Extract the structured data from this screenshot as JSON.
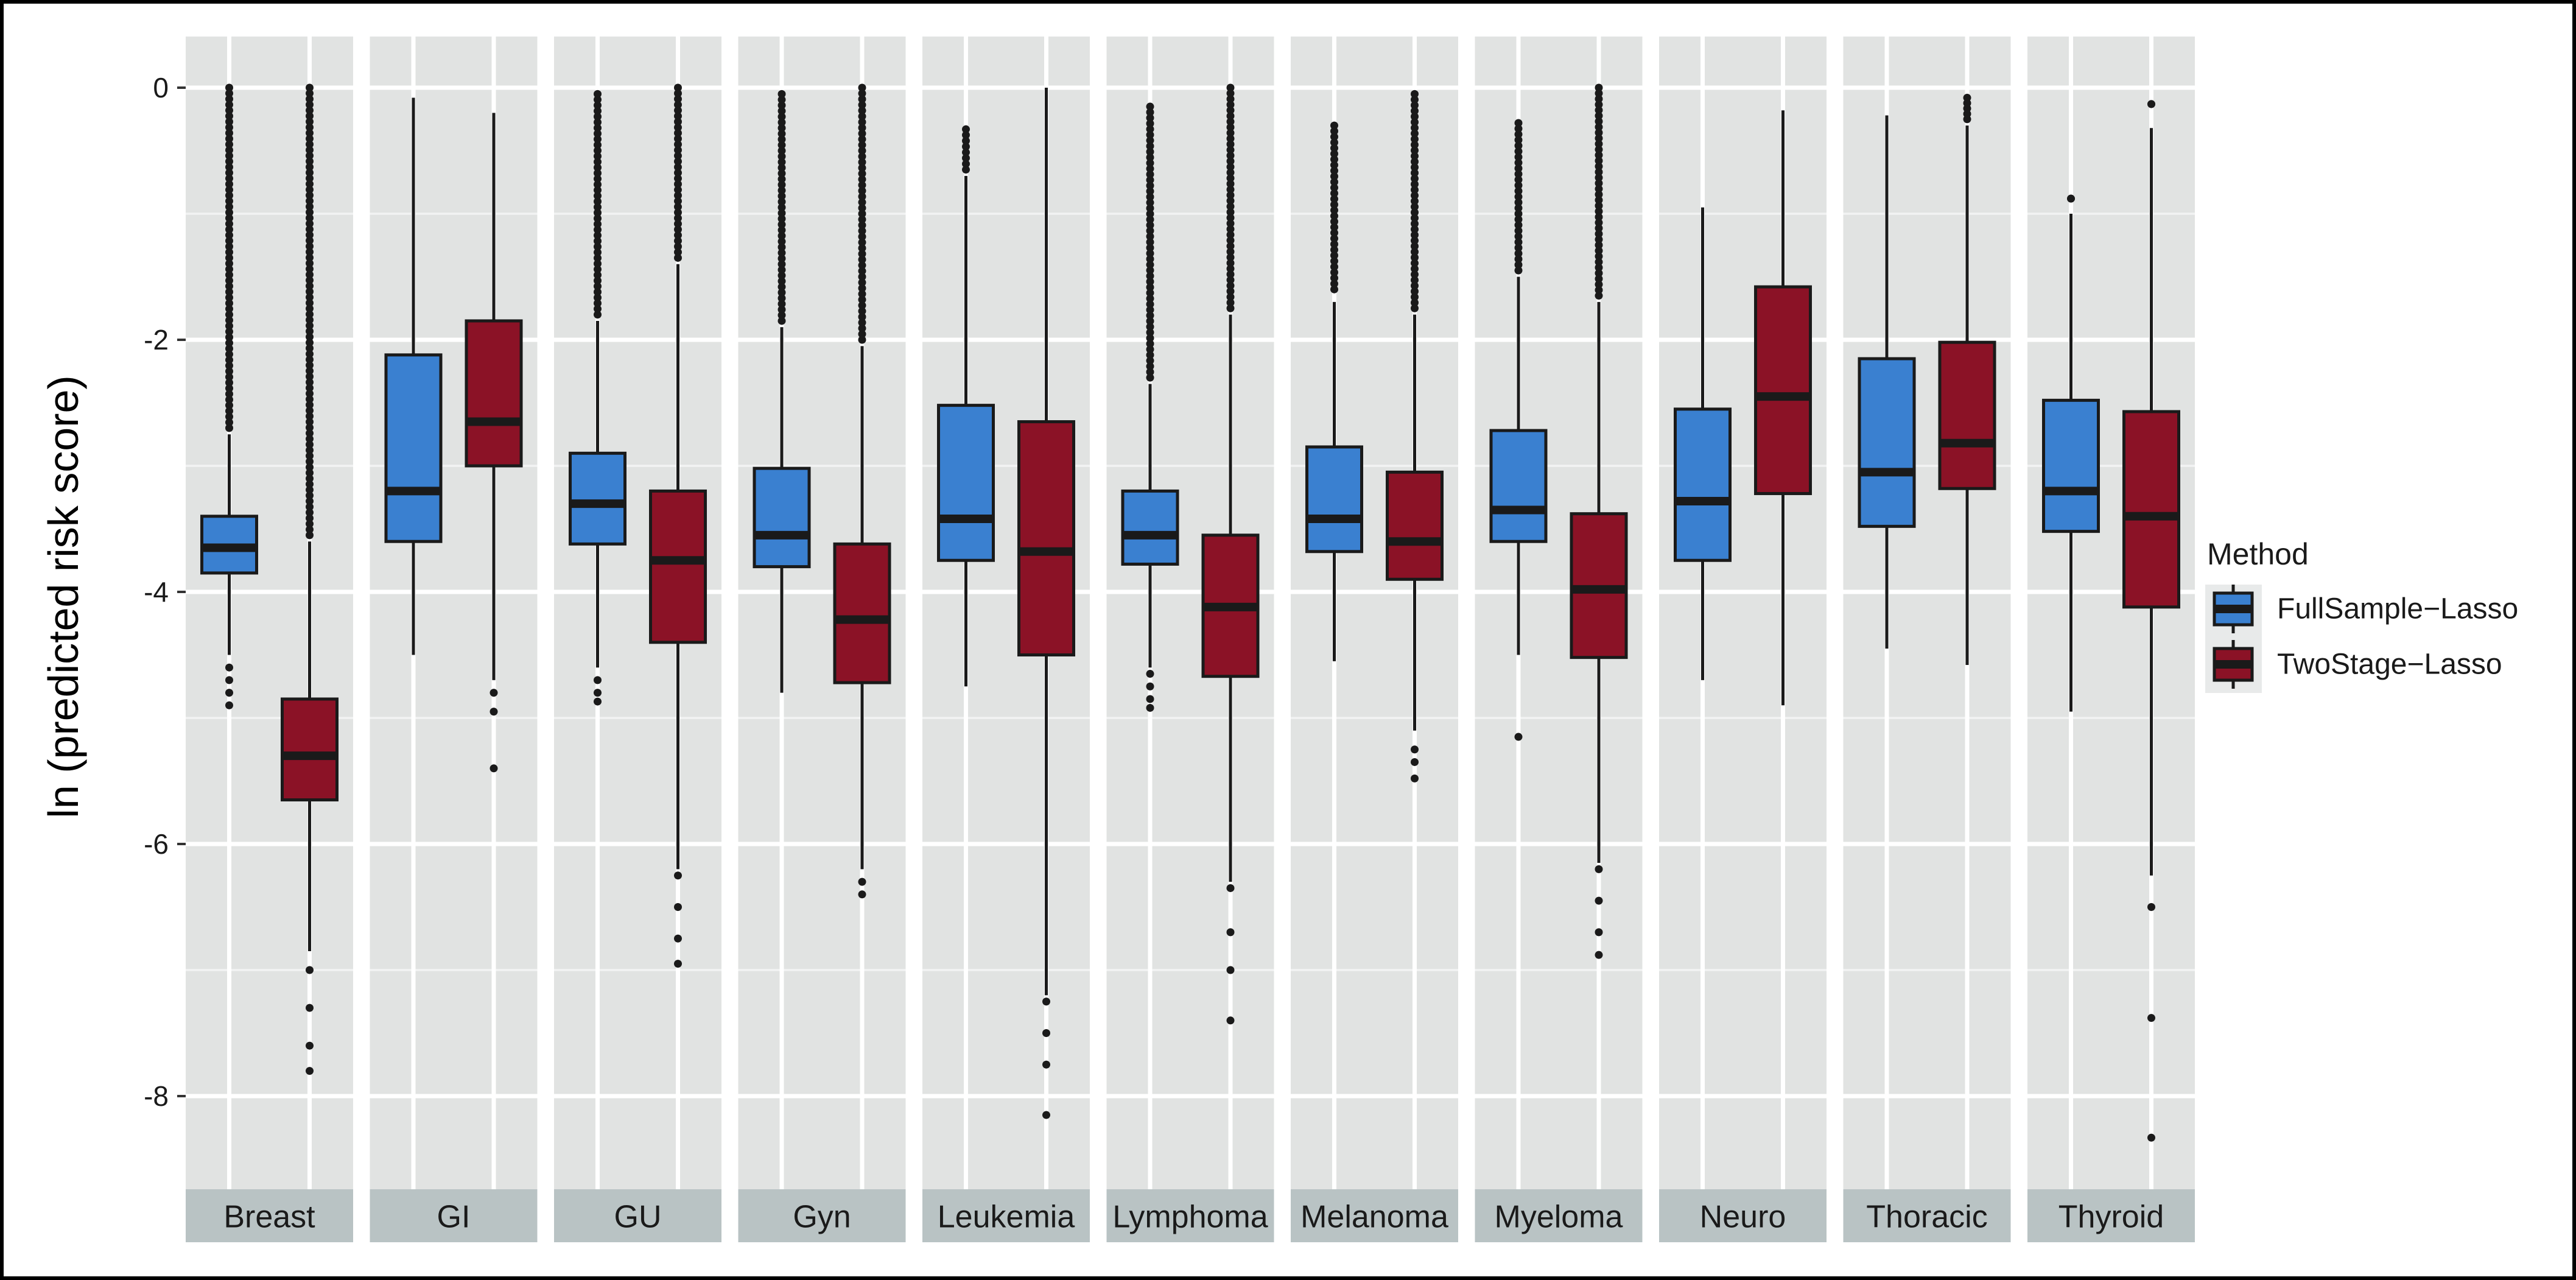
{
  "chart_data": {
    "type": "boxplot",
    "ylabel": "ln (predicted risk score)",
    "ylim": [
      -8.75,
      0.35
    ],
    "yticks": [
      0,
      -2,
      -4,
      -6,
      -8
    ],
    "ytick_labels": [
      "0",
      "-2",
      "-4",
      "-6",
      "-8"
    ],
    "grid": true,
    "facet_strip_position": "bottom",
    "legend": {
      "title": "Method",
      "position": "right",
      "entries": [
        {
          "name": "FullSample−Lasso",
          "color": "#3a80d0"
        },
        {
          "name": "TwoStage−Lasso",
          "color": "#8b1226"
        }
      ]
    },
    "panels": [
      {
        "label": "Breast",
        "boxes": [
          {
            "method": "FullSample−Lasso",
            "whisker_low": -4.5,
            "q1": -3.85,
            "median": -3.65,
            "q3": -3.4,
            "whisker_high": -2.75,
            "outliers_low": [
              -4.6,
              -4.7,
              -4.8,
              -4.9
            ],
            "outliers_high_from": -2.7,
            "outliers_high_to": 0.0
          },
          {
            "method": "TwoStage−Lasso",
            "whisker_low": -6.85,
            "q1": -5.65,
            "median": -5.3,
            "q3": -4.85,
            "whisker_high": -3.6,
            "outliers_low": [
              -7.0,
              -7.3,
              -7.6,
              -7.8
            ],
            "outliers_high_from": -3.55,
            "outliers_high_to": 0.0
          }
        ]
      },
      {
        "label": "GI",
        "boxes": [
          {
            "method": "FullSample−Lasso",
            "whisker_low": -4.5,
            "q1": -3.6,
            "median": -3.2,
            "q3": -2.12,
            "whisker_high": -0.08,
            "outliers_low": [],
            "outliers_high_from": null,
            "outliers_high_to": null
          },
          {
            "method": "TwoStage−Lasso",
            "whisker_low": -4.7,
            "q1": -3.0,
            "median": -2.65,
            "q3": -1.85,
            "whisker_high": -0.2,
            "outliers_low": [
              -4.8,
              -4.95,
              -5.4
            ],
            "outliers_high_from": null,
            "outliers_high_to": null
          }
        ]
      },
      {
        "label": "GU",
        "boxes": [
          {
            "method": "FullSample−Lasso",
            "whisker_low": -4.6,
            "q1": -3.62,
            "median": -3.3,
            "q3": -2.9,
            "whisker_high": -1.85,
            "outliers_low": [
              -4.7,
              -4.8,
              -4.87
            ],
            "outliers_high_from": -1.8,
            "outliers_high_to": -0.05
          },
          {
            "method": "TwoStage−Lasso",
            "whisker_low": -6.2,
            "q1": -4.4,
            "median": -3.75,
            "q3": -3.2,
            "whisker_high": -1.4,
            "outliers_low": [
              -6.25,
              -6.5,
              -6.75,
              -6.95
            ],
            "outliers_high_from": -1.35,
            "outliers_high_to": 0.0
          }
        ]
      },
      {
        "label": "Gyn",
        "boxes": [
          {
            "method": "FullSample−Lasso",
            "whisker_low": -4.8,
            "q1": -3.8,
            "median": -3.55,
            "q3": -3.02,
            "whisker_high": -1.9,
            "outliers_low": [],
            "outliers_high_from": -1.85,
            "outliers_high_to": -0.05
          },
          {
            "method": "TwoStage−Lasso",
            "whisker_low": -6.2,
            "q1": -4.72,
            "median": -4.22,
            "q3": -3.62,
            "whisker_high": -2.05,
            "outliers_low": [
              -6.3,
              -6.4
            ],
            "outliers_high_from": -2.0,
            "outliers_high_to": 0.0
          }
        ]
      },
      {
        "label": "Leukemia",
        "boxes": [
          {
            "method": "FullSample−Lasso",
            "whisker_low": -4.75,
            "q1": -3.75,
            "median": -3.42,
            "q3": -2.52,
            "whisker_high": -0.7,
            "outliers_low": [],
            "outliers_high_from": -0.65,
            "outliers_high_to": -0.33
          },
          {
            "method": "TwoStage−Lasso",
            "whisker_low": -7.2,
            "q1": -4.5,
            "median": -3.68,
            "q3": -2.65,
            "whisker_high": 0.0,
            "outliers_low": [
              -7.25,
              -7.5,
              -7.75,
              -8.15
            ],
            "outliers_high_from": null,
            "outliers_high_to": null
          }
        ]
      },
      {
        "label": "Lymphoma",
        "boxes": [
          {
            "method": "FullSample−Lasso",
            "whisker_low": -4.6,
            "q1": -3.78,
            "median": -3.55,
            "q3": -3.2,
            "whisker_high": -2.35,
            "outliers_low": [
              -4.65,
              -4.75,
              -4.85,
              -4.92
            ],
            "outliers_high_from": -2.3,
            "outliers_high_to": -0.15
          },
          {
            "method": "TwoStage−Lasso",
            "whisker_low": -6.3,
            "q1": -4.67,
            "median": -4.12,
            "q3": -3.55,
            "whisker_high": -1.8,
            "outliers_low": [
              -6.35,
              -6.7,
              -7.0,
              -7.4
            ],
            "outliers_high_from": -1.75,
            "outliers_high_to": 0.0
          }
        ]
      },
      {
        "label": "Melanoma",
        "boxes": [
          {
            "method": "FullSample−Lasso",
            "whisker_low": -4.55,
            "q1": -3.68,
            "median": -3.42,
            "q3": -2.85,
            "whisker_high": -1.7,
            "outliers_low": [],
            "outliers_high_from": -1.6,
            "outliers_high_to": -0.3
          },
          {
            "method": "TwoStage−Lasso",
            "whisker_low": -5.1,
            "q1": -3.9,
            "median": -3.6,
            "q3": -3.05,
            "whisker_high": -1.8,
            "outliers_low": [
              -5.25,
              -5.35,
              -5.48
            ],
            "outliers_high_from": -1.75,
            "outliers_high_to": -0.05
          }
        ]
      },
      {
        "label": "Myeloma",
        "boxes": [
          {
            "method": "FullSample−Lasso",
            "whisker_low": -4.5,
            "q1": -3.6,
            "median": -3.35,
            "q3": -2.72,
            "whisker_high": -1.5,
            "outliers_low": [
              -5.15
            ],
            "outliers_high_from": -1.45,
            "outliers_high_to": -0.28
          },
          {
            "method": "TwoStage−Lasso",
            "whisker_low": -6.15,
            "q1": -4.52,
            "median": -3.98,
            "q3": -3.38,
            "whisker_high": -1.7,
            "outliers_low": [
              -6.2,
              -6.45,
              -6.7,
              -6.88
            ],
            "outliers_high_from": -1.65,
            "outliers_high_to": 0.0
          }
        ]
      },
      {
        "label": "Neuro",
        "boxes": [
          {
            "method": "FullSample−Lasso",
            "whisker_low": -4.7,
            "q1": -3.75,
            "median": -3.28,
            "q3": -2.55,
            "whisker_high": -0.95,
            "outliers_low": [],
            "outliers_high_from": null,
            "outliers_high_to": null
          },
          {
            "method": "TwoStage−Lasso",
            "whisker_low": -4.9,
            "q1": -3.22,
            "median": -2.45,
            "q3": -1.58,
            "whisker_high": -0.18,
            "outliers_low": [],
            "outliers_high_from": null,
            "outliers_high_to": null
          }
        ]
      },
      {
        "label": "Thoracic",
        "boxes": [
          {
            "method": "FullSample−Lasso",
            "whisker_low": -4.45,
            "q1": -3.48,
            "median": -3.05,
            "q3": -2.15,
            "whisker_high": -0.22,
            "outliers_low": [],
            "outliers_high_from": null,
            "outliers_high_to": null
          },
          {
            "method": "TwoStage−Lasso",
            "whisker_low": -4.58,
            "q1": -3.18,
            "median": -2.82,
            "q3": -2.02,
            "whisker_high": -0.3,
            "outliers_low": [],
            "outliers_high_from": -0.25,
            "outliers_high_to": -0.08
          }
        ]
      },
      {
        "label": "Thyroid",
        "boxes": [
          {
            "method": "FullSample−Lasso",
            "whisker_low": -4.95,
            "q1": -3.52,
            "median": -3.2,
            "q3": -2.48,
            "whisker_high": -1.0,
            "outliers_low": [],
            "outliers_high_from": -0.88,
            "outliers_high_to": -0.88
          },
          {
            "method": "TwoStage−Lasso",
            "whisker_low": -6.25,
            "q1": -4.12,
            "median": -3.4,
            "q3": -2.57,
            "whisker_high": -0.32,
            "outliers_low": [
              -6.5,
              -7.38,
              -8.33
            ],
            "outliers_high_from": -0.13,
            "outliers_high_to": -0.13
          }
        ]
      }
    ]
  }
}
